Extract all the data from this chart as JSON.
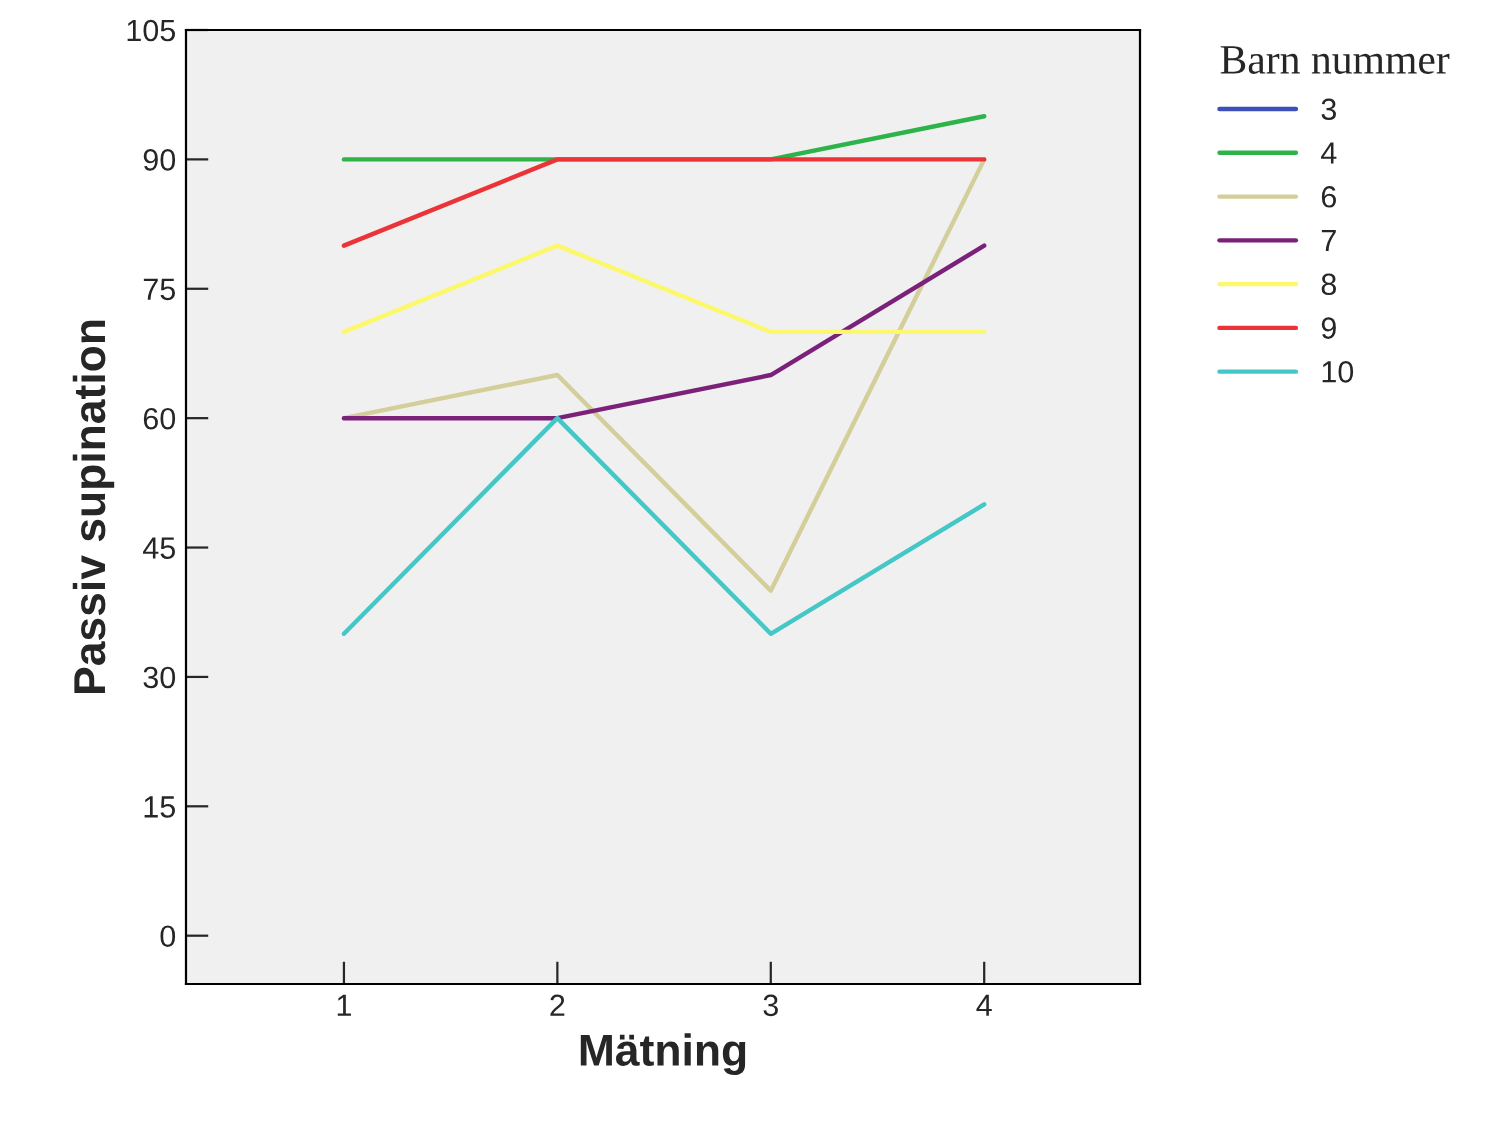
{
  "chart_data": {
    "type": "line",
    "xlabel": "Mätning",
    "ylabel": "Passiv supination",
    "legend_title": "Barn nummer",
    "x": [
      1,
      2,
      3,
      4
    ],
    "xlim": [
      0.26,
      4.73
    ],
    "xticks": [
      1,
      2,
      3,
      4
    ],
    "ylim": [
      -5.6,
      105
    ],
    "yticks": [
      0,
      15,
      30,
      45,
      60,
      75,
      90,
      105
    ],
    "grid": false,
    "legend": "top right",
    "marker": "none",
    "line_style": "solid",
    "series": [
      {
        "name": "3",
        "color": "#3e4fb8",
        "values": [
          null,
          null,
          null,
          null
        ]
      },
      {
        "name": "4",
        "color": "#2db34a",
        "values": [
          90,
          90,
          90,
          95
        ]
      },
      {
        "name": "6",
        "color": "#d3ce9a",
        "values": [
          60,
          65,
          40,
          90
        ]
      },
      {
        "name": "7",
        "color": "#7b2179",
        "values": [
          60,
          60,
          65,
          80
        ]
      },
      {
        "name": "8",
        "color": "#fbf86b",
        "values": [
          70,
          80,
          70,
          70
        ]
      },
      {
        "name": "9",
        "color": "#eb3437",
        "values": [
          80,
          90,
          90,
          90
        ]
      },
      {
        "name": "10",
        "color": "#45c7c7",
        "values": [
          35,
          60,
          35,
          50
        ]
      }
    ]
  }
}
